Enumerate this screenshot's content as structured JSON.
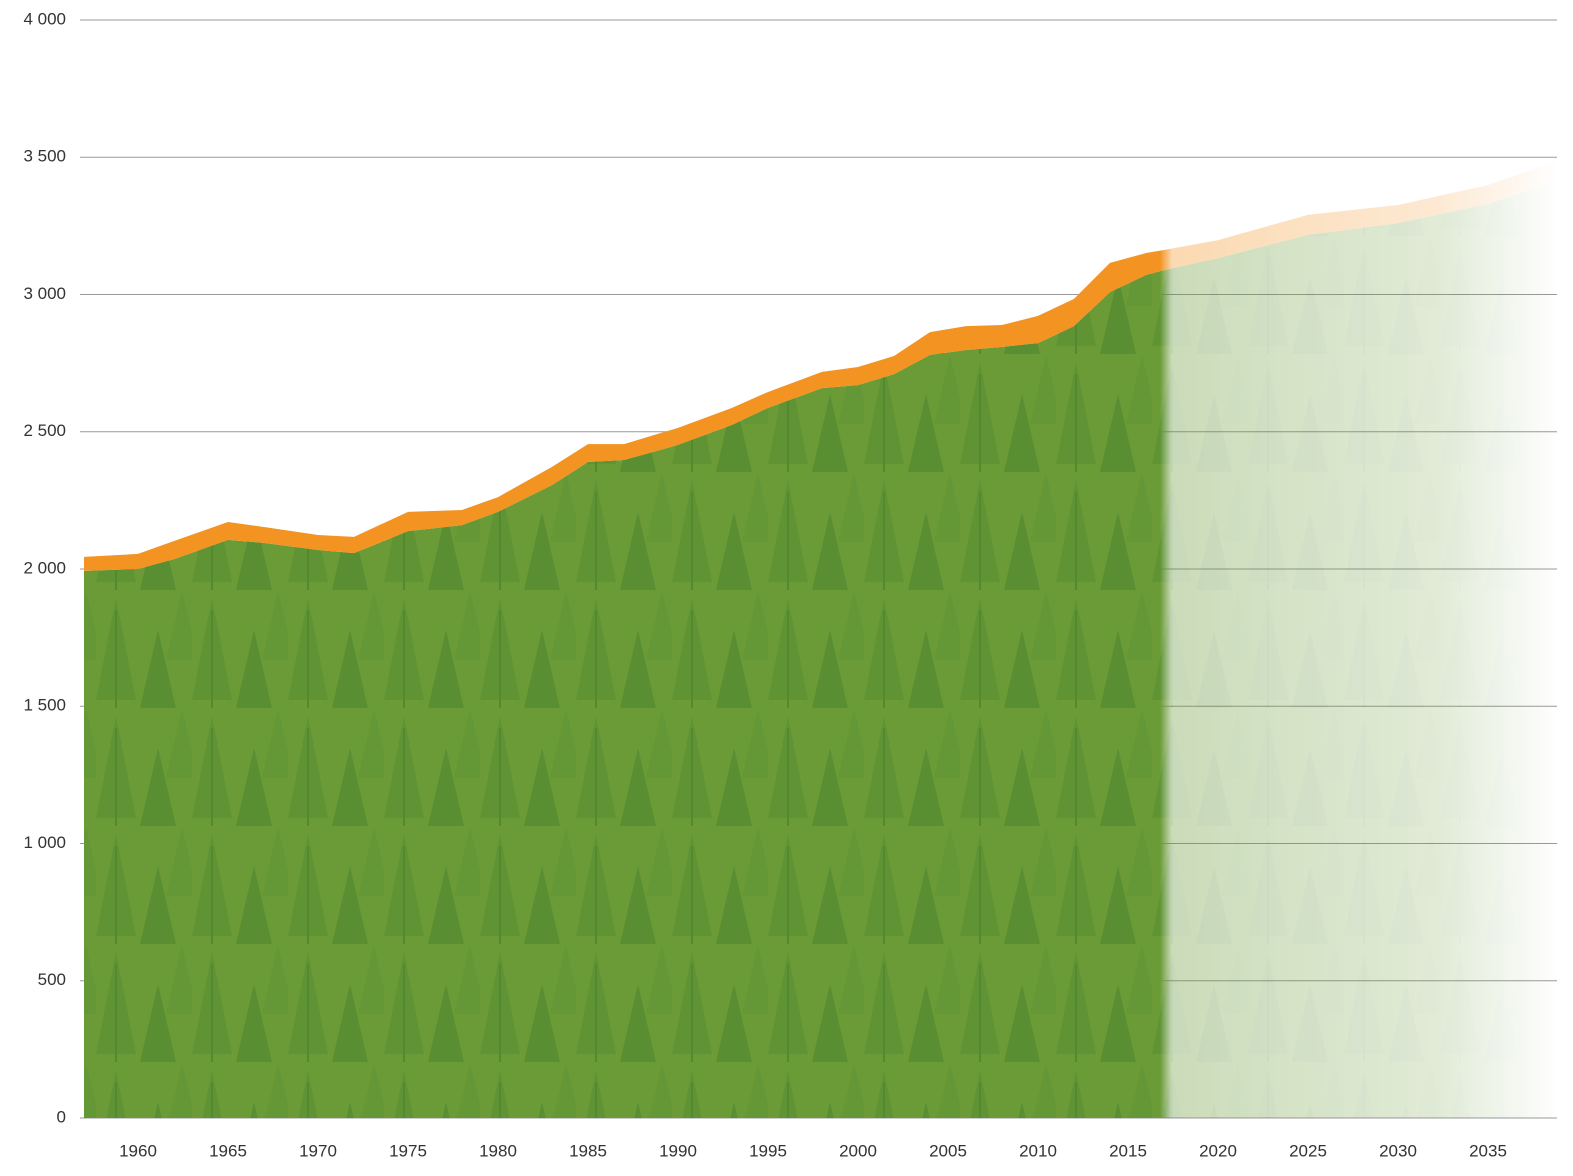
{
  "chart_data": {
    "type": "stacked-area",
    "x": [
      1957,
      1960,
      1962,
      1965,
      1967,
      1970,
      1972,
      1975,
      1978,
      1980,
      1983,
      1985,
      1987,
      1990,
      1993,
      1995,
      1998,
      2000,
      2002,
      2004,
      2006,
      2008,
      2010,
      2012,
      2014,
      2016,
      2017,
      2020,
      2025,
      2030,
      2035,
      2039
    ],
    "series": [
      {
        "color": "#6b9b37",
        "values": [
          1993,
          2000,
          2036,
          2106,
          2095,
          2069,
          2058,
          2138,
          2160,
          2208,
          2306,
          2390,
          2397,
          2452,
          2525,
          2587,
          2659,
          2670,
          2710,
          2780,
          2798,
          2809,
          2823,
          2885,
          3009,
          3071,
          3089,
          3133,
          3217,
          3260,
          3330,
          3420
        ]
      },
      {
        "color": "#f39322",
        "values": [
          51,
          55,
          66,
          65,
          58,
          55,
          59,
          70,
          55,
          54,
          66,
          65,
          58,
          62,
          62,
          58,
          59,
          66,
          66,
          83,
          87,
          80,
          99,
          99,
          106,
          80,
          73,
          65,
          73,
          66,
          69,
          70
        ]
      }
    ],
    "xlim": [
      1957,
      2039
    ],
    "xticks": [
      1960,
      1965,
      1970,
      1975,
      1980,
      1985,
      1990,
      1995,
      2000,
      2005,
      2010,
      2015,
      2020,
      2025,
      2030,
      2035
    ],
    "ylim": [
      0,
      4000
    ],
    "yticks": [
      0,
      500,
      {
        "value": 1000,
        "label": "1 000"
      },
      {
        "value": 1500,
        "label": "1 500"
      },
      {
        "value": 2000,
        "label": "2 000"
      },
      {
        "value": 2500,
        "label": "2 500"
      },
      {
        "value": 3000,
        "label": "3 000"
      },
      {
        "value": 3500,
        "label": "3 500"
      },
      {
        "value": 4000,
        "label": "4 000"
      }
    ],
    "grid": true
  }
}
